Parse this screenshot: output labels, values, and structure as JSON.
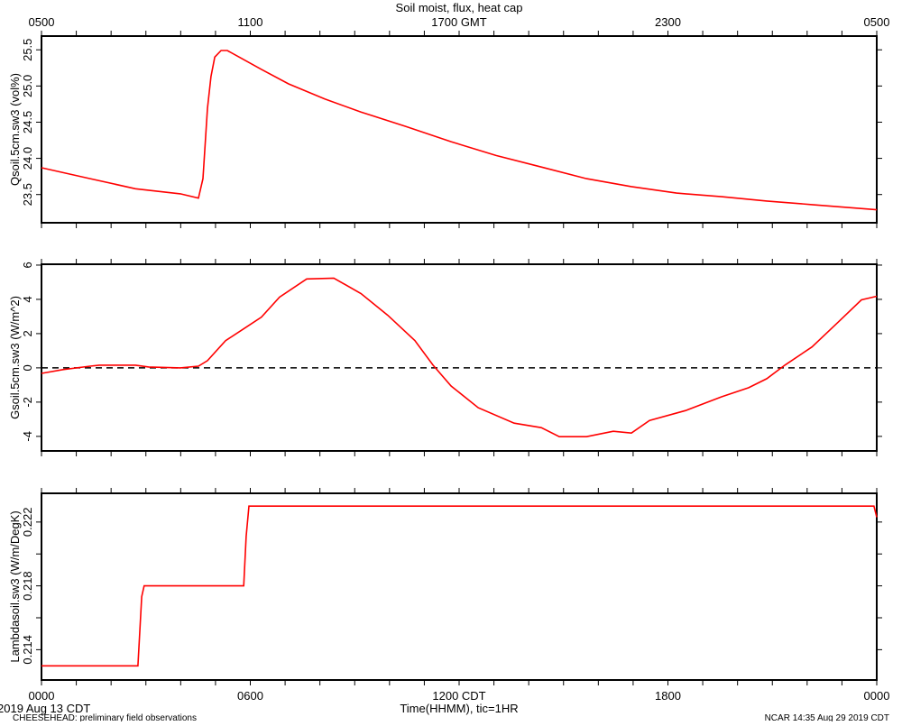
{
  "chart_data": {
    "type": "line",
    "title": "Soil moist, flux, heat cap",
    "line_color": "#ff0000",
    "top_axis": {
      "ticks": [
        0,
        6,
        12,
        18,
        24
      ],
      "labels": [
        "0500",
        "1100",
        "1700 GMT",
        "2300",
        "0500"
      ]
    },
    "bottom_axis": {
      "ticks": [
        0,
        6,
        12,
        18,
        24
      ],
      "labels": [
        "0000",
        "0600",
        "1200 CDT",
        "1800",
        "0000"
      ],
      "xlabel": "Time(HHMM), tic=1HR",
      "date_label": "2019 Aug 13 CDT"
    },
    "xlim": [
      0,
      24
    ],
    "panels": [
      {
        "ylabel": "Qsoil.5cm.sw3 (vol%)",
        "ylim": [
          23.11,
          25.69
        ],
        "yticks": [
          23.5,
          24.0,
          24.5,
          25.0,
          25.5
        ],
        "ytick_labels": [
          "23.5",
          "24.0",
          "24.5",
          "25.0",
          "25.5"
        ],
        "minor_yticks": [],
        "x": [
          0,
          1.4,
          2.7,
          3.99,
          4.51,
          4.64,
          4.77,
          4.87,
          4.98,
          5.16,
          5.34,
          5.68,
          6.32,
          7.1,
          8.14,
          9.18,
          10.47,
          11.77,
          13.06,
          14.36,
          15.66,
          16.95,
          18.25,
          19.54,
          20.84,
          22.14,
          24
        ],
        "y": [
          23.87,
          23.72,
          23.58,
          23.51,
          23.45,
          23.72,
          24.69,
          25.13,
          25.4,
          25.49,
          25.49,
          25.4,
          25.23,
          25.03,
          24.82,
          24.64,
          24.44,
          24.23,
          24.04,
          23.88,
          23.72,
          23.61,
          23.52,
          23.47,
          23.41,
          23.36,
          23.29
        ]
      },
      {
        "ylabel": "Gsoil.5cm.sw3 (W/m^2)",
        "ylim": [
          -4.85,
          6.05
        ],
        "yticks": [
          -4,
          -2,
          0,
          2,
          4,
          6
        ],
        "ytick_labels": [
          "-4",
          "-2",
          "0",
          "2",
          "4",
          "6"
        ],
        "minor_yticks": [],
        "zero_line": "dashed",
        "x": [
          0,
          0.62,
          1.4,
          1.66,
          2.7,
          3.08,
          3.99,
          4.51,
          4.77,
          5.29,
          5.81,
          6.32,
          6.84,
          7.62,
          8.4,
          9.18,
          9.95,
          10.73,
          11.25,
          11.77,
          12.55,
          13.58,
          14.36,
          14.88,
          15.66,
          16.43,
          16.95,
          17.47,
          18.51,
          19.54,
          20.32,
          20.84,
          21.36,
          22.14,
          22.91,
          23.56,
          24
        ],
        "y": [
          -0.32,
          -0.1,
          0.1,
          0.16,
          0.16,
          0.05,
          0,
          0.1,
          0.42,
          1.59,
          2.28,
          2.96,
          4.13,
          5.19,
          5.24,
          4.34,
          3.07,
          1.59,
          0.16,
          -1.06,
          -2.33,
          -3.23,
          -3.49,
          -4.02,
          -4.02,
          -3.7,
          -3.81,
          -3.07,
          -2.49,
          -1.69,
          -1.16,
          -0.63,
          0.16,
          1.22,
          2.7,
          3.97,
          4.18
        ]
      },
      {
        "ylabel": "Lambdasoil.sw3 (W/m/DegK)",
        "ylim": [
          0.2121,
          0.2238
        ],
        "yticks": [
          0.214,
          0.218,
          0.222
        ],
        "ytick_labels": [
          "0.214",
          "0.218",
          "0.222"
        ],
        "minor_yticks": [
          0.216,
          0.22
        ],
        "x": [
          0,
          2.77,
          2.88,
          2.95,
          5.81,
          5.88,
          5.96,
          23.92,
          24
        ],
        "y": [
          0.21299,
          0.21299,
          0.21732,
          0.218,
          0.218,
          0.2211,
          0.223,
          0.223,
          0.2223
        ]
      }
    ]
  },
  "footer": {
    "left": "CHEESEHEAD: preliminary field observations",
    "right": "NCAR 14:35 Aug 29 2019 CDT"
  }
}
